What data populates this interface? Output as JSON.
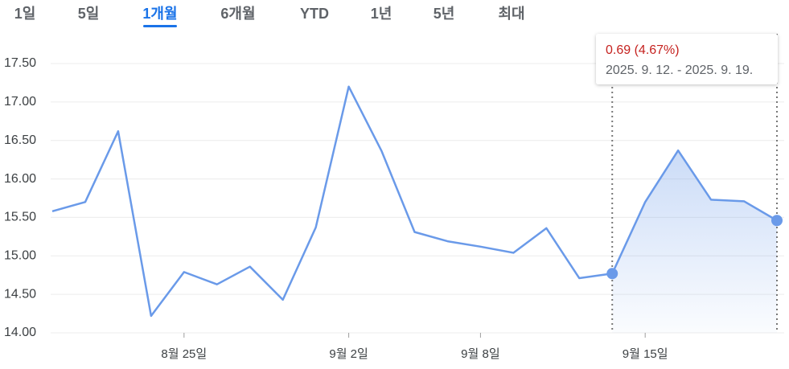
{
  "tabs": {
    "items": [
      "1일",
      "5일",
      "1개월",
      "6개월",
      "YTD",
      "1년",
      "5년",
      "최대"
    ],
    "selected": 2
  },
  "chart_data": {
    "type": "line",
    "categories": [
      null,
      null,
      null,
      null,
      "8월 25일",
      null,
      null,
      null,
      null,
      "9월 2일",
      null,
      null,
      null,
      "9월 8일",
      null,
      null,
      null,
      null,
      "9월 15일",
      null,
      null,
      null,
      null
    ],
    "values": [
      15.58,
      15.7,
      16.62,
      14.22,
      14.79,
      14.63,
      14.86,
      14.43,
      15.37,
      17.2,
      16.36,
      15.31,
      15.19,
      15.12,
      15.04,
      15.36,
      14.71,
      14.77,
      15.7,
      16.37,
      15.73,
      15.71,
      15.46
    ],
    "color": "#6a9ae9",
    "ylim": [
      14,
      17.5
    ],
    "yticks": [
      {
        "value": 14,
        "label": "14.00"
      },
      {
        "value": 14.5,
        "label": "14.50"
      },
      {
        "value": 15,
        "label": "15.00"
      },
      {
        "value": 15.5,
        "label": "15.50"
      },
      {
        "value": 16,
        "label": "16.00"
      },
      {
        "value": 16.5,
        "label": "16.50"
      },
      {
        "value": 17,
        "label": "17.00"
      },
      {
        "value": 17.5,
        "label": "17.50"
      }
    ],
    "grid": true,
    "selection": [
      17,
      22
    ],
    "tooltip": {
      "change": "0.69 (4.67%)",
      "range": "2025. 9. 12. - 2025. 9. 19."
    }
  }
}
